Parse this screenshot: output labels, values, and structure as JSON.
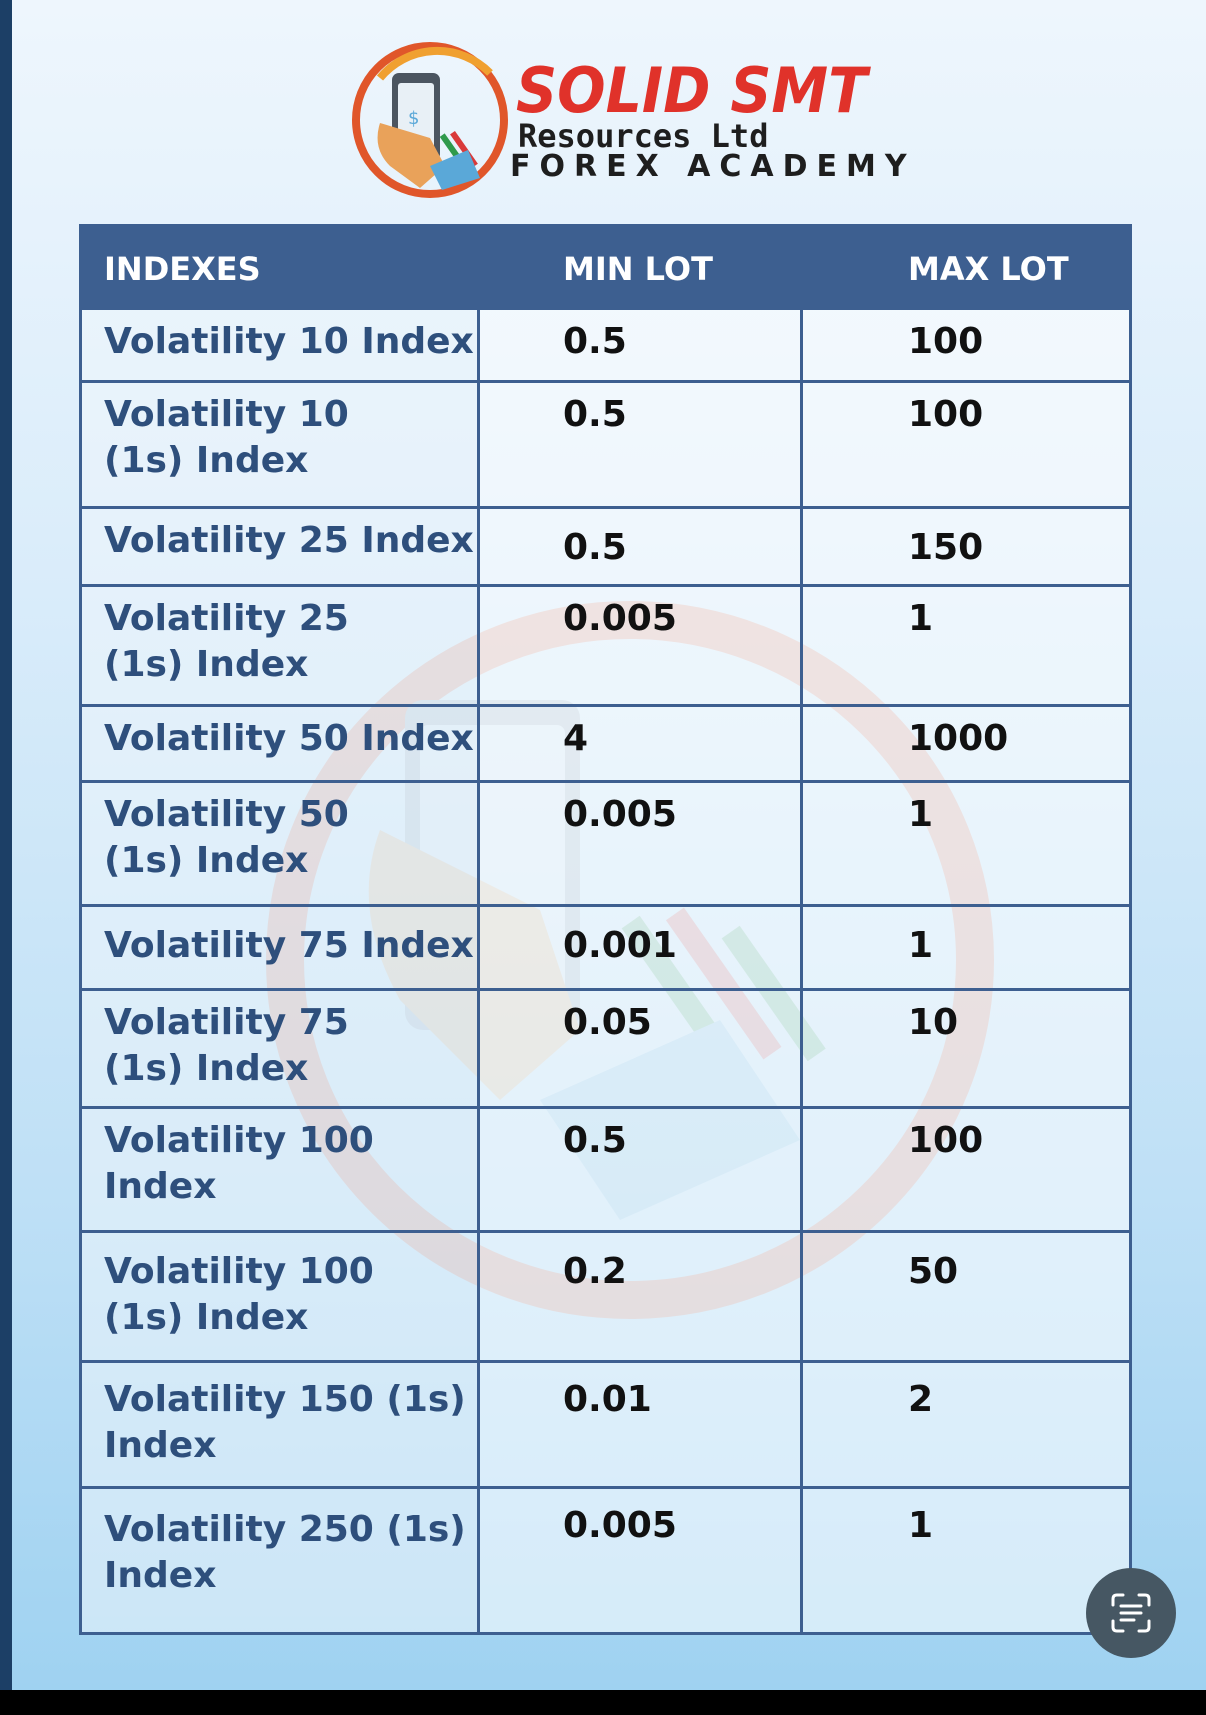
{
  "brand": {
    "title": "SOLID SMT",
    "subtitle": "Resources Ltd",
    "academy": "FOREX ACADEMY"
  },
  "table": {
    "headers": [
      "INDEXES",
      "MIN LOT",
      "MAX LOT"
    ],
    "rows": [
      {
        "index": "Volatility 10 Index",
        "min_lot": "0.5",
        "max_lot": "100"
      },
      {
        "index": "Volatility 10 (1s) Index",
        "min_lot": "0.5",
        "max_lot": "100"
      },
      {
        "index": "Volatility 25 Index",
        "min_lot": "0.5",
        "max_lot": "150"
      },
      {
        "index": "Volatility 25 (1s) Index",
        "min_lot": "0.005",
        "max_lot": "1"
      },
      {
        "index": "Volatility 50 Index",
        "min_lot": "4",
        "max_lot": "1000"
      },
      {
        "index": "Volatility 50 (1s) Index",
        "min_lot": "0.005",
        "max_lot": "1"
      },
      {
        "index": "Volatility 75 Index",
        "min_lot": "0.001",
        "max_lot": "1"
      },
      {
        "index": "Volatility 75 (1s) Index",
        "min_lot": "0.05",
        "max_lot": "10"
      },
      {
        "index": "Volatility 100 Index",
        "min_lot": "0.5",
        "max_lot": "100"
      },
      {
        "index": "Volatility 100 (1s) Index",
        "min_lot": "0.2",
        "max_lot": "50"
      },
      {
        "index": "Volatility 150 (1s) Index",
        "min_lot": "0.01",
        "max_lot": "2"
      },
      {
        "index": "Volatility 250 (1s) Index",
        "min_lot": "0.005",
        "max_lot": "1"
      }
    ]
  },
  "colors": {
    "header_blue": "#3d5f90",
    "index_text": "#2e4f7c",
    "brand_red": "#e0322a"
  },
  "icons": {
    "lens": "text-scan-icon",
    "logo": "phone-hand-logo-icon"
  }
}
